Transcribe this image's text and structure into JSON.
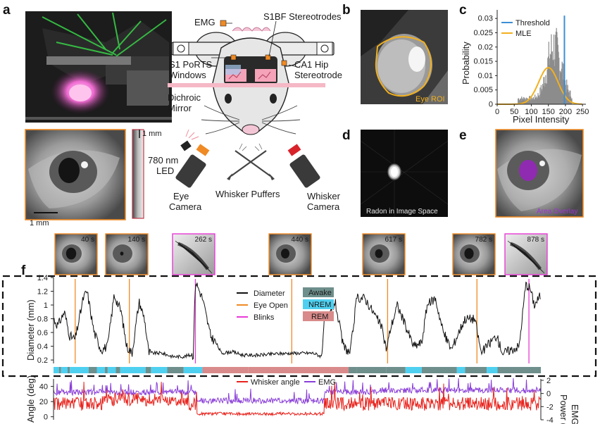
{
  "panel_labels": {
    "a": "a",
    "b": "b",
    "c": "c",
    "d": "d",
    "e": "e",
    "f": "f"
  },
  "diagram": {
    "emg": "EMG",
    "s1bf_line1": "S1BF Stereotrodes",
    "s1_line1": "S1 PoRTS",
    "s1_line2": "Windows",
    "ca1_line1": "CA1 Hip",
    "ca1_line2": "Stereotrode",
    "dichroic_line1": "Dichroic",
    "dichroic_line2": "Mirror",
    "led_line1": "780 nm",
    "led_line2": "LED",
    "eye_cam_line1": "Eye",
    "eye_cam_line2": "Camera",
    "puffers": "Whisker Puffers",
    "whisker_cam_line1": "Whisker",
    "whisker_cam_line2": "Camera",
    "scale_1mm_vertical": "1 mm",
    "scale_1mm_horizontal": "1 mm"
  },
  "panel_b": {
    "caption": "Eye ROI"
  },
  "panel_d": {
    "caption": "Radon in Image Space"
  },
  "panel_e": {
    "caption": "Area Overlay"
  },
  "panel_c": {
    "ylabel": "Probability",
    "xlabel": "Pixel Intensity",
    "yticks": [
      "0",
      "0.005",
      "0.01",
      "0.015",
      "0.02",
      "0.025",
      "0.03"
    ],
    "xticks": [
      "0",
      "50",
      "100",
      "150",
      "200",
      "250"
    ],
    "legend": [
      {
        "name": "Threshold",
        "color": "#3d8fd6"
      },
      {
        "name": "MLE",
        "color": "#f2b01e"
      }
    ]
  },
  "thumbnails": [
    {
      "time": "40 s",
      "kind": "eye"
    },
    {
      "time": "140 s",
      "kind": "eye"
    },
    {
      "time": "262 s",
      "kind": "whisker"
    },
    {
      "time": "440 s",
      "kind": "eye"
    },
    {
      "time": "617 s",
      "kind": "eye"
    },
    {
      "time": "782 s",
      "kind": "eye"
    },
    {
      "time": "878 s",
      "kind": "whisker"
    }
  ],
  "panel_f": {
    "ylabel_top": "Diameter (mm)",
    "yticks_top": [
      "0.2",
      "0.4",
      "0.6",
      "0.8",
      "1",
      "1.2",
      "1.4"
    ],
    "legend_lines": [
      {
        "name": "Diameter",
        "color": "#111111"
      },
      {
        "name": "Eye Open",
        "color": "#f08a24"
      },
      {
        "name": "Blinks",
        "color": "#e83ad6"
      }
    ],
    "legend_states": [
      {
        "name": "Awake",
        "color": "#6e8f8c"
      },
      {
        "name": "NREM",
        "color": "#4fd0f0"
      },
      {
        "name": "REM",
        "color": "#d98a8a"
      }
    ],
    "ylabel_bottom": "Angle (deg)",
    "yticks_bottom": [
      "0",
      "20",
      "40"
    ],
    "ylabel_right_line1": "EMG",
    "ylabel_right_line2": "Power (a.u.)",
    "yticks_right": [
      "2",
      "0",
      "-2",
      "-4"
    ],
    "legend_bottom": [
      {
        "name": "Whisker angle",
        "color": "#e8231d"
      },
      {
        "name": "EMG",
        "color": "#8a3fd8"
      }
    ]
  },
  "colors": {
    "orange": "#f08a24",
    "magenta": "#e83ad6",
    "awake": "#6e8f8c",
    "nrem": "#4fd0f0",
    "rem": "#d98a8a",
    "whisker": "#e8231d",
    "emg": "#8a3fd8",
    "mle": "#f2b01e",
    "threshold": "#3d8fd6"
  }
}
